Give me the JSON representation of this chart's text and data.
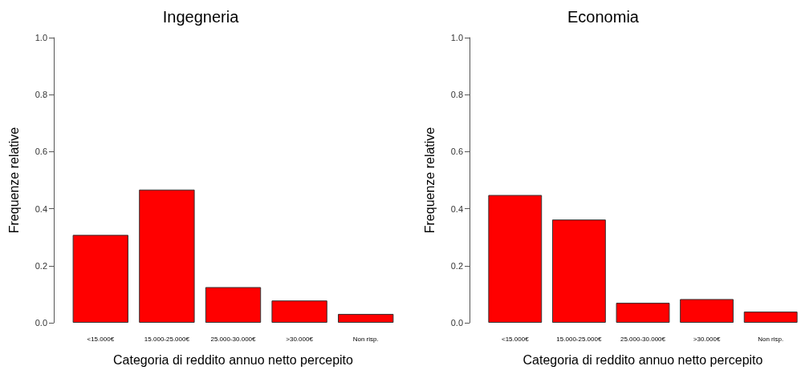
{
  "chart_data": [
    {
      "type": "bar",
      "title": "Ingegneria",
      "xlabel": "Categoria di reddito annuo netto percepito",
      "ylabel": "Frequenze relative",
      "categories": [
        "<15.000€",
        "15.000-25.000€",
        "25.000-30.000€",
        ">30.000€",
        "Non risp."
      ],
      "values": [
        0.308,
        0.467,
        0.125,
        0.078,
        0.031
      ],
      "color": "#ff0000",
      "ylim": [
        0,
        1
      ],
      "yticks": [
        {
          "value": 0,
          "label": "0.0"
        },
        {
          "value": 0.2,
          "label": "0.2"
        },
        {
          "value": 0.4,
          "label": "0.4"
        },
        {
          "value": 0.6,
          "label": "0.6"
        },
        {
          "value": 0.8,
          "label": "0.8"
        },
        {
          "value": 1,
          "label": "1.0"
        }
      ],
      "grid": false
    },
    {
      "type": "bar",
      "title": "Economia",
      "xlabel": "Categoria di reddito annuo netto percepito",
      "ylabel": "Frequenze relative",
      "categories": [
        "<15.000€",
        "15.000-25.000€",
        "25.000-30.000€",
        ">30.000€",
        "Non risp."
      ],
      "values": [
        0.448,
        0.362,
        0.07,
        0.083,
        0.039
      ],
      "color": "#ff0000",
      "ylim": [
        0,
        1
      ],
      "yticks": [
        {
          "value": 0,
          "label": "0.0"
        },
        {
          "value": 0.2,
          "label": "0.2"
        },
        {
          "value": 0.4,
          "label": "0.4"
        },
        {
          "value": 0.6,
          "label": "0.6"
        },
        {
          "value": 0.8,
          "label": "0.8"
        },
        {
          "value": 1,
          "label": "1.0"
        }
      ],
      "grid": false
    }
  ]
}
